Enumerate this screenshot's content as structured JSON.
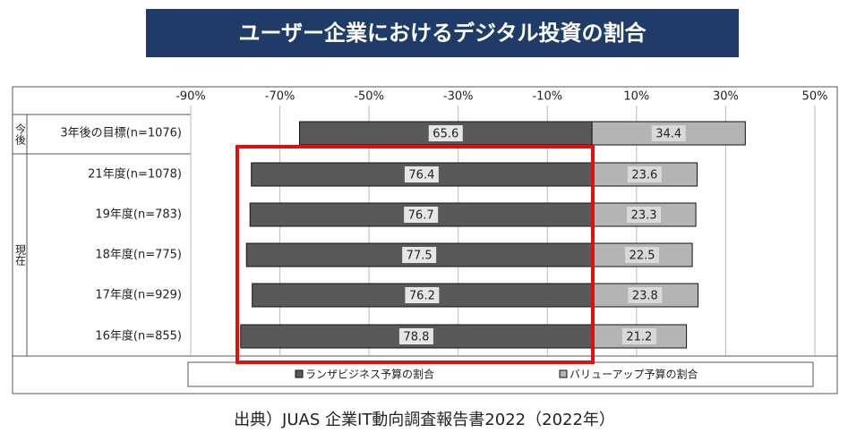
{
  "chart_data": {
    "type": "diverging_bar",
    "title": "ユーザー企業におけるデジタル投資の割合",
    "source": "出典）JUAS 企業IT動向調査報告書2022（2022年）",
    "row_groups": [
      "今後",
      "現在"
    ],
    "categories": [
      "3年後の目標(n=1076)",
      "21年度(n=1078)",
      "19年度(n=783)",
      "18年度(n=775)",
      "17年度(n=929)",
      "16年度(n=855)"
    ],
    "series": [
      {
        "name": "ランザビジネス予算の割合",
        "color": "#595959",
        "values": [
          -65.6,
          -76.4,
          -76.7,
          -77.5,
          -76.2,
          -78.8
        ],
        "value_labels": [
          "65.6",
          "76.4",
          "76.7",
          "77.5",
          "76.2",
          "78.8"
        ]
      },
      {
        "name": "バリューアップ予算の割合",
        "color": "#b4b4b4",
        "values": [
          34.4,
          23.6,
          23.3,
          22.5,
          23.8,
          21.2
        ]
      }
    ],
    "xlim": [
      -90,
      50
    ],
    "xticks": [
      {
        "value": -90,
        "label": "-90%"
      },
      {
        "value": -70,
        "label": "-70%"
      },
      {
        "value": -50,
        "label": "-50%"
      },
      {
        "value": -30,
        "label": "-30%"
      },
      {
        "value": -10,
        "label": "-10%"
      },
      {
        "value": 10,
        "label": "10%"
      },
      {
        "value": 30,
        "label": "30%"
      },
      {
        "value": 50,
        "label": "50%"
      }
    ],
    "grid": true
  }
}
